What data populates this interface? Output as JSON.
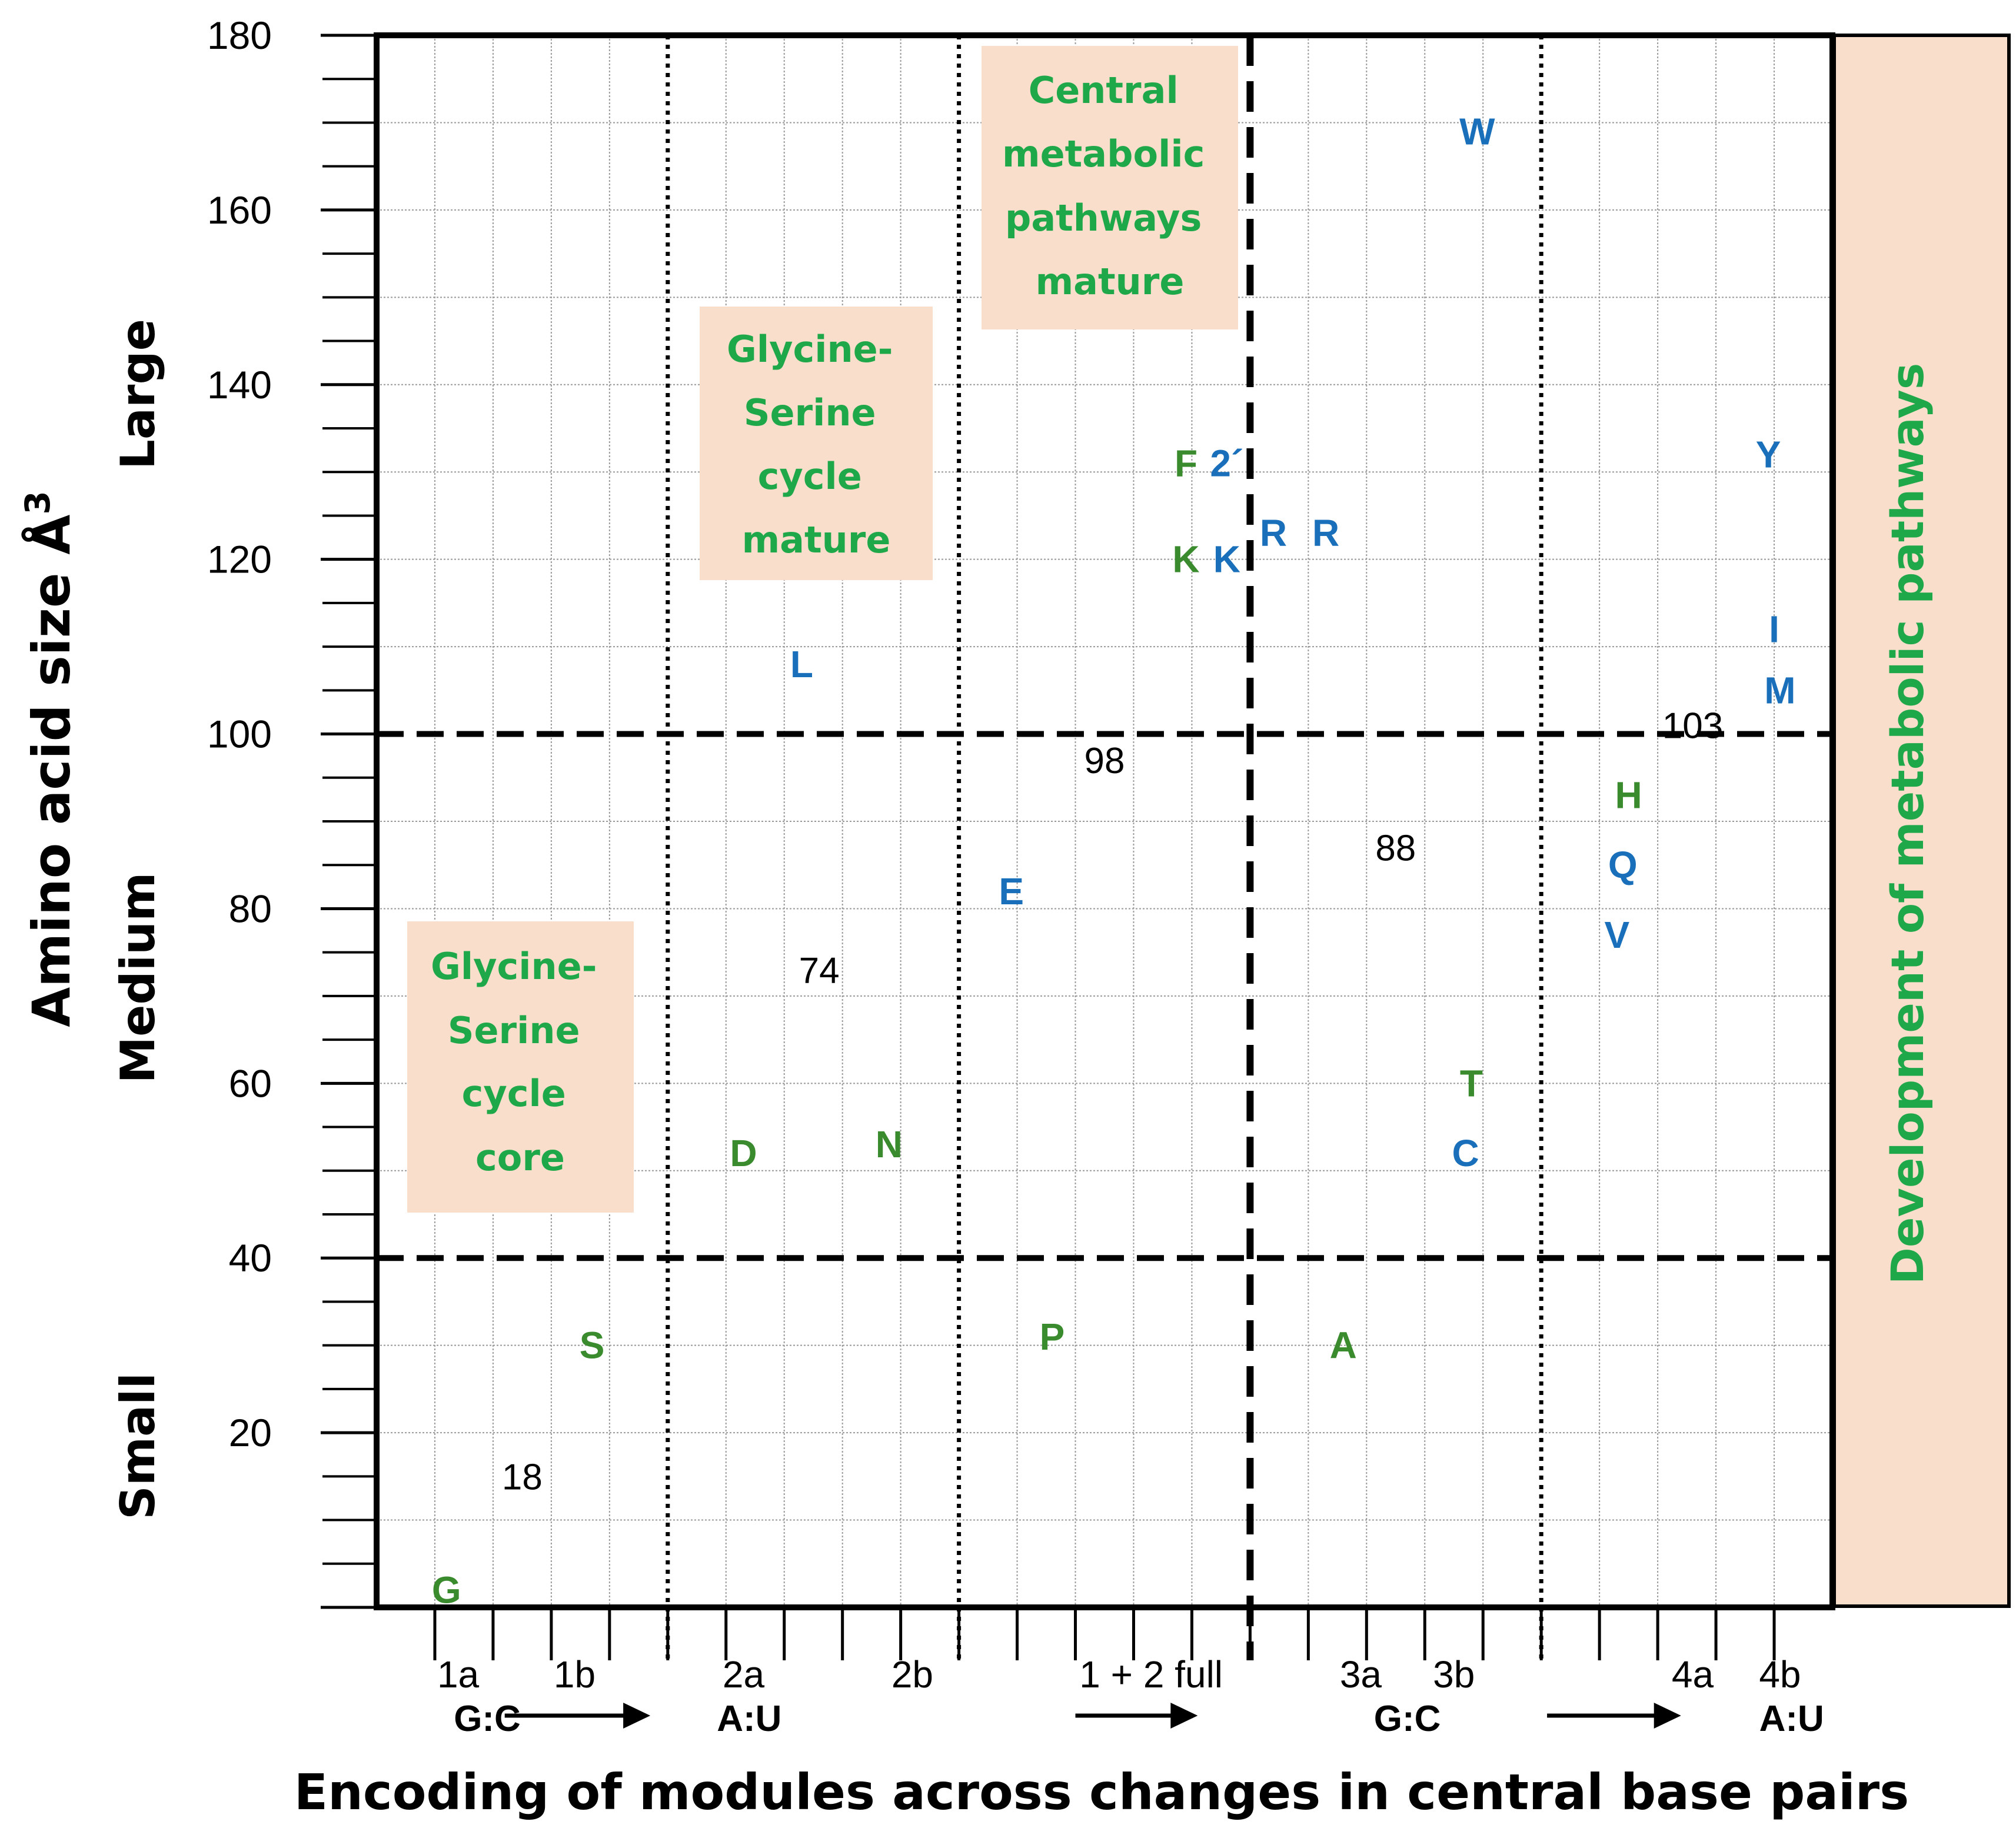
{
  "chart_data": {
    "type": "scatter",
    "title": "",
    "xlabel": "Encoding of modules across changes in central base pairs",
    "ylabel": "Amino acid size Å",
    "ylabel_superscript": "3",
    "ylim": [
      0,
      180
    ],
    "y_ticks": [
      20,
      40,
      60,
      80,
      100,
      120,
      140,
      160,
      180
    ],
    "y_size_classes": [
      {
        "label": "Small",
        "range": [
          0,
          40
        ]
      },
      {
        "label": "Medium",
        "range": [
          40,
          100
        ]
      },
      {
        "label": "Large",
        "range": [
          100,
          180
        ]
      }
    ],
    "x_tick_labels": [
      "1a",
      "1b",
      "2a",
      "2b",
      "1 + 2 full",
      "3a",
      "3b",
      "4a",
      "4b"
    ],
    "base_pair_transitions": [
      {
        "from": "G:C",
        "to": "A:U"
      },
      {
        "from": "",
        "to": ""
      },
      {
        "from": "G:C",
        "to": "A:U"
      }
    ],
    "threshold_lines": [
      40,
      100
    ],
    "series": [
      {
        "name": "green",
        "color": "#3a8a2e",
        "points": [
          {
            "label": "G",
            "x": 1.2,
            "y": 2
          },
          {
            "label": "S",
            "x": 3.7,
            "y": 30
          },
          {
            "label": "D",
            "x": 6.3,
            "y": 52
          },
          {
            "label": "N",
            "x": 8.8,
            "y": 53
          },
          {
            "label": "P",
            "x": 11.6,
            "y": 31
          },
          {
            "label": "F",
            "x": 13.9,
            "y": 131
          },
          {
            "label": "K",
            "x": 13.9,
            "y": 120
          },
          {
            "label": "A",
            "x": 16.6,
            "y": 30
          },
          {
            "label": "T",
            "x": 18.8,
            "y": 60
          },
          {
            "label": "H",
            "x": 21.5,
            "y": 93
          }
        ]
      },
      {
        "name": "blue",
        "color": "#1a6fbb",
        "points": [
          {
            "label": "L",
            "x": 7.3,
            "y": 108
          },
          {
            "label": "E",
            "x": 10.9,
            "y": 82
          },
          {
            "label": "2´",
            "x": 14.6,
            "y": 131
          },
          {
            "label": "R",
            "x": 15.4,
            "y": 123
          },
          {
            "label": "K",
            "x": 14.6,
            "y": 120
          },
          {
            "label": "R",
            "x": 16.3,
            "y": 123
          },
          {
            "label": "W",
            "x": 18.9,
            "y": 169
          },
          {
            "label": "C",
            "x": 18.7,
            "y": 52
          },
          {
            "label": "Q",
            "x": 21.4,
            "y": 85
          },
          {
            "label": "V",
            "x": 21.3,
            "y": 77
          },
          {
            "label": "Y",
            "x": 23.9,
            "y": 132
          },
          {
            "label": "I",
            "x": 24.0,
            "y": 112
          },
          {
            "label": "M",
            "x": 24.1,
            "y": 105
          }
        ]
      }
    ],
    "value_annotations": [
      {
        "text": "18",
        "x": 2.5,
        "y": 15
      },
      {
        "text": "74",
        "x": 7.6,
        "y": 73
      },
      {
        "text": "98",
        "x": 12.5,
        "y": 97
      },
      {
        "text": "88",
        "x": 17.5,
        "y": 87
      },
      {
        "text": "103",
        "x": 22.6,
        "y": 101
      }
    ],
    "annotation_boxes": [
      {
        "lines": [
          "Glycine-",
          "Serine",
          "cycle",
          "core"
        ]
      },
      {
        "lines": [
          "Glycine-",
          "Serine",
          "cycle",
          "mature"
        ]
      },
      {
        "lines": [
          "Central",
          "metabolic",
          "pathways",
          "mature"
        ]
      }
    ],
    "side_panel": "Development of metabolic pathways",
    "colors": {
      "green_label": "#3a8a2e",
      "blue_label": "#1a6fbb",
      "box_text": "#1fa84a",
      "box_fill": "#f9decb"
    }
  }
}
